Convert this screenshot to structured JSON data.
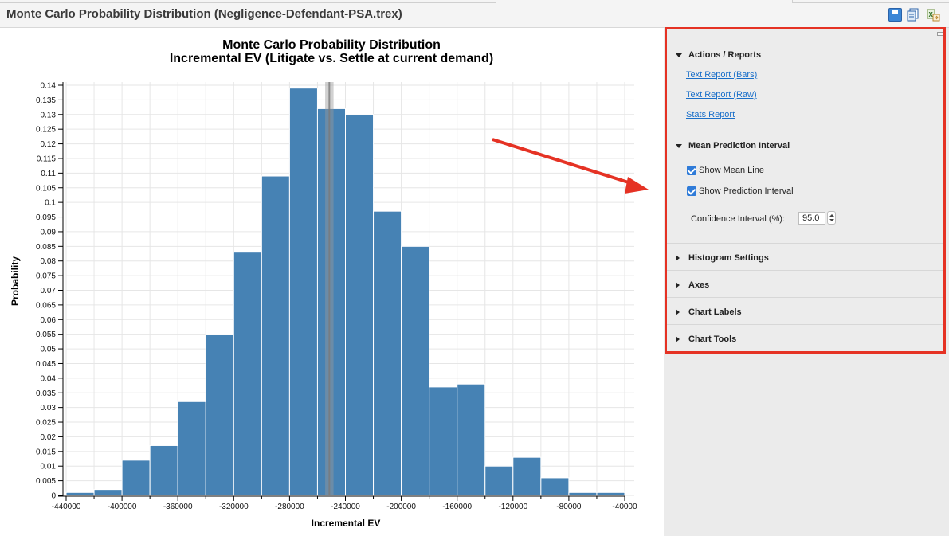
{
  "window": {
    "title": "Monte Carlo Probability Distribution (Negligence-Defendant-PSA.trex)",
    "toolbar_icons": [
      "save-icon",
      "copy-icon",
      "export-icon"
    ]
  },
  "panel": {
    "sections": [
      {
        "title": "Actions / Reports",
        "expanded": true
      },
      {
        "title": "Mean Prediction Interval",
        "expanded": true
      },
      {
        "title": "Histogram Settings",
        "expanded": false
      },
      {
        "title": "Axes",
        "expanded": false
      },
      {
        "title": "Chart Labels",
        "expanded": false
      },
      {
        "title": "Chart Tools",
        "expanded": false
      }
    ],
    "links": [
      "Text Report (Bars)",
      "Text Report (Raw)",
      "Stats Report"
    ],
    "show_mean_line_label": "Show Mean Line",
    "show_mean_line_checked": true,
    "show_prediction_interval_label": "Show Prediction Interval",
    "show_prediction_interval_checked": true,
    "confidence_label": "Confidence Interval (%):",
    "confidence_value": "95.0",
    "highlight_color": "#e53224"
  },
  "chart_data": {
    "type": "bar",
    "title": "Monte Carlo Probability Distribution",
    "subtitle": "Incremental EV (Litigate vs. Settle at current demand)",
    "xlabel": "Incremental EV",
    "ylabel": "Probability",
    "bin_edges": [
      -440000,
      -420000,
      -400000,
      -380000,
      -360000,
      -340000,
      -320000,
      -300000,
      -280000,
      -260000,
      -240000,
      -220000,
      -200000,
      -180000,
      -160000,
      -140000,
      -120000,
      -100000,
      -80000,
      -60000,
      -40000
    ],
    "values": [
      0.001,
      0.002,
      0.012,
      0.017,
      0.032,
      0.055,
      0.083,
      0.109,
      0.139,
      0.132,
      0.13,
      0.097,
      0.085,
      0.037,
      0.038,
      0.01,
      0.013,
      0.006,
      0.001,
      0.001
    ],
    "xlim": [
      -440000,
      -40000
    ],
    "ylim": [
      0,
      0.14
    ],
    "xticks": [
      -440000,
      -400000,
      -360000,
      -320000,
      -280000,
      -240000,
      -200000,
      -160000,
      -120000,
      -80000,
      -40000
    ],
    "yticks": [
      "0",
      "0.005",
      "0.01",
      "0.015",
      "0.02",
      "0.025",
      "0.03",
      "0.035",
      "0.04",
      "0.045",
      "0.05",
      "0.055",
      "0.06",
      "0.065",
      "0.07",
      "0.075",
      "0.08",
      "0.085",
      "0.09",
      "0.095",
      "0.1",
      "0.105",
      "0.11",
      "0.115",
      "0.12",
      "0.125",
      "0.13",
      "0.135",
      "0.14"
    ],
    "mean": -251500,
    "prediction_interval": [
      -254500,
      -248500
    ],
    "bar_color": "#4682b4",
    "grid": true
  },
  "annotation_arrow_color": "#e53224"
}
